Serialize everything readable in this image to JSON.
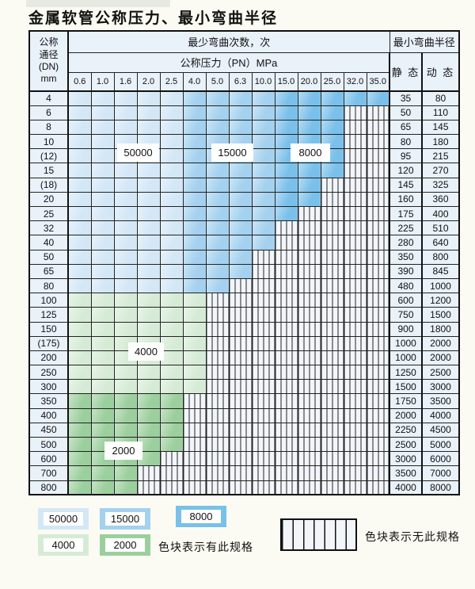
{
  "title": "金属软管公称压力、最小弯曲半径",
  "colors": {
    "page_bg": "#fbfbf3",
    "cell_bg": "#e9f1f9",
    "light_blue": "#d3e7f7",
    "medium_blue": "#a3d1ef",
    "dark_blue": "#79c0ea",
    "light_green": "#d6ebd6",
    "dark_green": "#9bcf9d",
    "stripe_bg": "#f2f6fb",
    "grid": "#222222"
  },
  "table": {
    "header": {
      "dn_lines": [
        "公称",
        "通径",
        "(DN)",
        "mm"
      ],
      "bend_cycles": "最少弯曲次数，次",
      "pressure": "公称压力（PN）MPa",
      "min_radius": "最小弯曲半径",
      "static_label": "静 态",
      "dynamic_label": "动 态",
      "pressures": [
        "0.6",
        "1.0",
        "1.6",
        "2.0",
        "2.5",
        "4.0",
        "5.0",
        "6.3",
        "10.0",
        "15.0",
        "20.0",
        "25.0",
        "32.0",
        "35.0"
      ]
    },
    "cell_legend_codes": {
      "L": "50000 cycles (light blue)",
      "M": "15000 cycles (medium blue)",
      "D": "8000 cycles (dark blue)",
      "G": "4000 cycles (light green)",
      "g": "2000 cycles (dark green)",
      "S": "no such specification (striped)"
    },
    "rows": [
      {
        "dn": "4",
        "cells": "LLLLLMMMMDDDDD",
        "static": "35",
        "dynamic": "80"
      },
      {
        "dn": "6",
        "cells": "LLLLLMMMMDDDSS",
        "static": "50",
        "dynamic": "110"
      },
      {
        "dn": "8",
        "cells": "LLLLLMMMMDDDSS",
        "static": "65",
        "dynamic": "145"
      },
      {
        "dn": "10",
        "cells": "LLLLLMMMMDDDSS",
        "static": "80",
        "dynamic": "180"
      },
      {
        "dn": "(12)",
        "cells": "LLLLLMMMMDDDSS",
        "static": "95",
        "dynamic": "215"
      },
      {
        "dn": "15",
        "cells": "LLLLLMMMMDDDSS",
        "static": "120",
        "dynamic": "270"
      },
      {
        "dn": "(18)",
        "cells": "LLLLLMMMMDDSSS",
        "static": "145",
        "dynamic": "325"
      },
      {
        "dn": "20",
        "cells": "LLLLLMMMMDDSSS",
        "static": "160",
        "dynamic": "360"
      },
      {
        "dn": "25",
        "cells": "LLLLLMMMMDSSSS",
        "static": "175",
        "dynamic": "400"
      },
      {
        "dn": "32",
        "cells": "LLLLLMMMMSSSSS",
        "static": "225",
        "dynamic": "510"
      },
      {
        "dn": "40",
        "cells": "LLLLLMMMMSSSSS",
        "static": "280",
        "dynamic": "640"
      },
      {
        "dn": "50",
        "cells": "LLLLLMMMSSSSSS",
        "static": "350",
        "dynamic": "800"
      },
      {
        "dn": "65",
        "cells": "LLLLLMMMSSSSSS",
        "static": "390",
        "dynamic": "845"
      },
      {
        "dn": "80",
        "cells": "LLLLLMMSSSSSSS",
        "static": "480",
        "dynamic": "1000"
      },
      {
        "dn": "100",
        "cells": "GGGGGGSSSSSSSS",
        "static": "600",
        "dynamic": "1200"
      },
      {
        "dn": "125",
        "cells": "GGGGGGSSSSSSSS",
        "static": "750",
        "dynamic": "1500"
      },
      {
        "dn": "150",
        "cells": "GGGGGGSSSSSSSS",
        "static": "900",
        "dynamic": "1800"
      },
      {
        "dn": "(175)",
        "cells": "GGGGGGSSSSSSSS",
        "static": "1000",
        "dynamic": "2000"
      },
      {
        "dn": "200",
        "cells": "GGGGGGSSSSSSSS",
        "static": "1000",
        "dynamic": "2000"
      },
      {
        "dn": "250",
        "cells": "GGGGGGSSSSSSSS",
        "static": "1250",
        "dynamic": "2500"
      },
      {
        "dn": "300",
        "cells": "GGGGGGSSSSSSSS",
        "static": "1500",
        "dynamic": "3000"
      },
      {
        "dn": "350",
        "cells": "gggggSSSSSSSSS",
        "static": "1750",
        "dynamic": "3500"
      },
      {
        "dn": "400",
        "cells": "gggggSSSSSSSSS",
        "static": "2000",
        "dynamic": "4000"
      },
      {
        "dn": "450",
        "cells": "gggggSSSSSSSSS",
        "static": "2250",
        "dynamic": "4500"
      },
      {
        "dn": "500",
        "cells": "gggggSSSSSSSSS",
        "static": "2500",
        "dynamic": "5000"
      },
      {
        "dn": "600",
        "cells": "ggggSSSSSSSSSS",
        "static": "3000",
        "dynamic": "6000"
      },
      {
        "dn": "700",
        "cells": "gggSSSSSSSSSSS",
        "static": "3500",
        "dynamic": "7000"
      },
      {
        "dn": "800",
        "cells": "gggSSSSSSSSSSS",
        "static": "4000",
        "dynamic": "8000"
      }
    ]
  },
  "overlays": {
    "cycles_50000": "50000",
    "cycles_15000": "15000",
    "cycles_8000": "8000",
    "cycles_4000": "4000",
    "cycles_2000": "2000"
  },
  "legend": {
    "swatches": [
      {
        "label": "50000"
      },
      {
        "label": "15000"
      },
      {
        "label": "8000"
      },
      {
        "label": "4000"
      },
      {
        "label": "2000"
      }
    ],
    "has_spec_text": "色块表示有此规格",
    "no_spec_text": "色块表示无此规格"
  }
}
